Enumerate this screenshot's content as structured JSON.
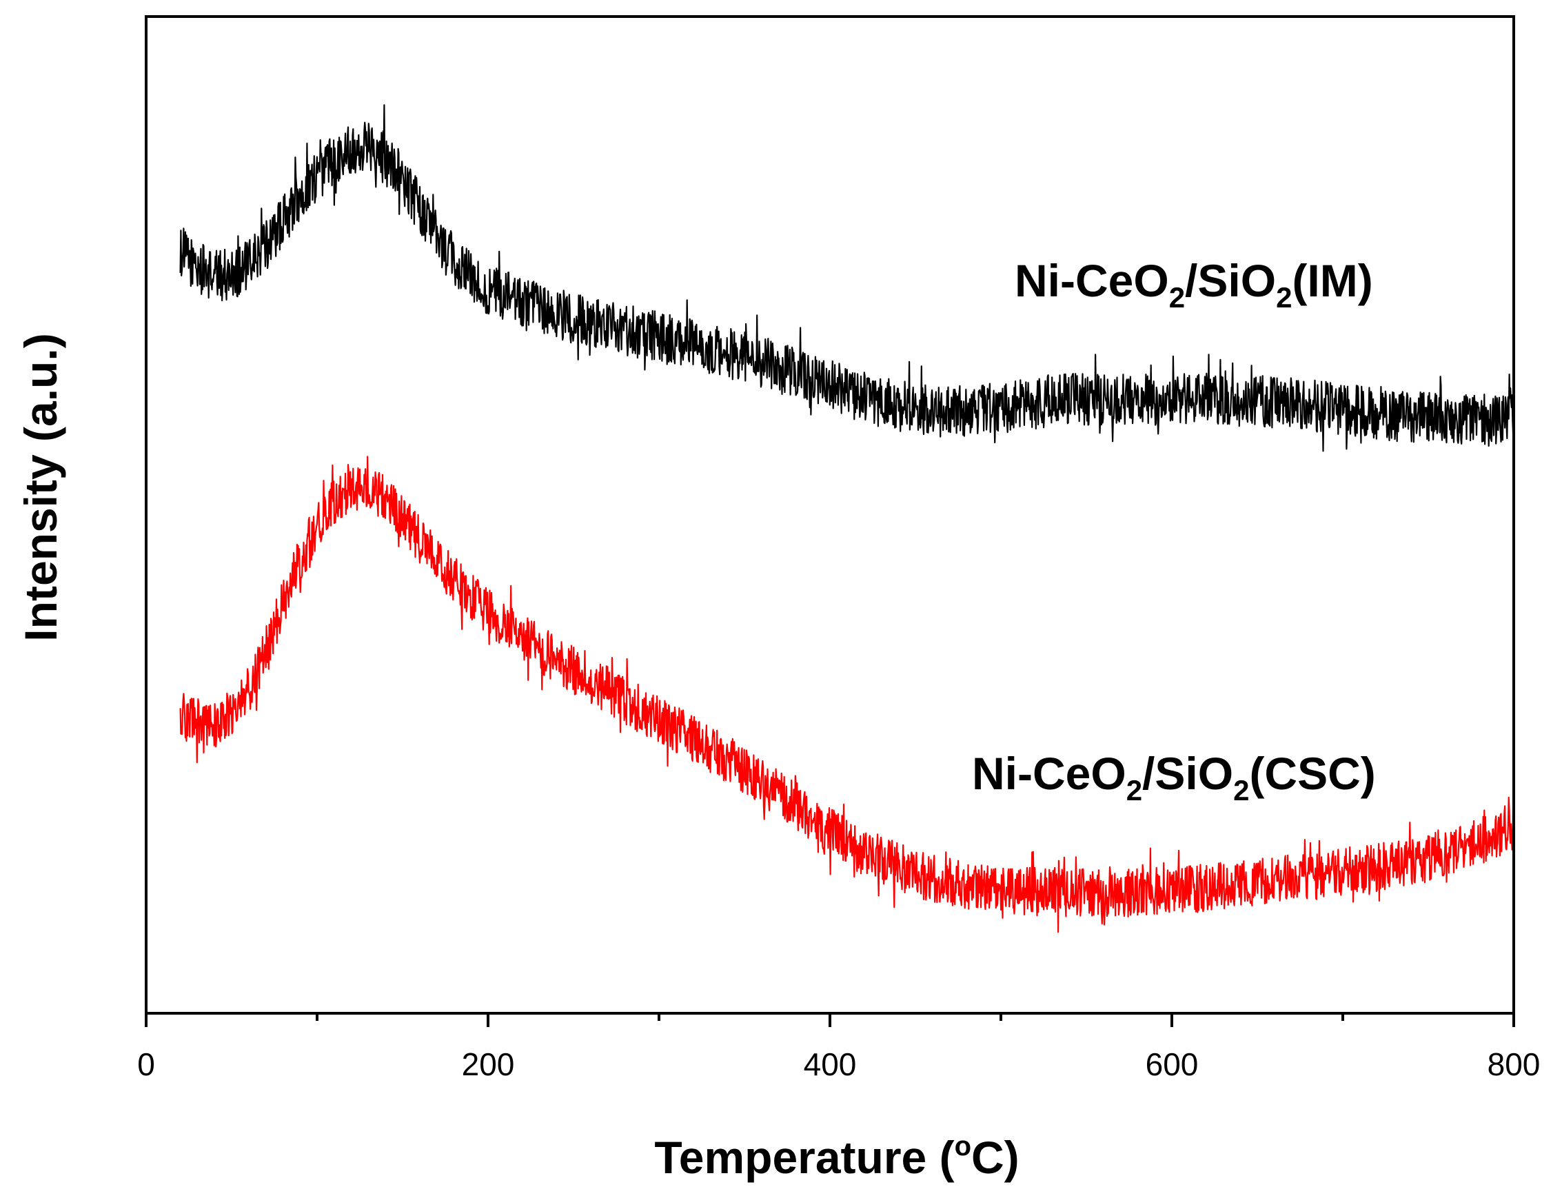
{
  "chart_data": {
    "type": "line",
    "title": "",
    "xlabel": "Temperature (°C)",
    "xlabel_prefix": "Temperature (",
    "xlabel_degree": "o",
    "xlabel_suffix": "C)",
    "ylabel": "Intensity (a.u.)",
    "xlim": [
      0,
      800
    ],
    "ylim": [
      0,
      100
    ],
    "x_ticks": [
      0,
      200,
      400,
      600,
      800
    ],
    "x_tick_labels": [
      "0",
      "200",
      "400",
      "600",
      "800"
    ],
    "x_minor_ticks": [
      100,
      300,
      500,
      700
    ],
    "y_ticks_shown": false,
    "grid": false,
    "legend": "inline labels beside curves",
    "series": [
      {
        "name": "Ni-CeO2/SiO2(IM)",
        "label_parts": [
          "Ni-CeO",
          "2",
          "/SiO",
          "2",
          "(IM)"
        ],
        "color": "#000000",
        "noise_amplitude": 2.6,
        "x": [
          20,
          30,
          40,
          50,
          60,
          70,
          80,
          90,
          100,
          110,
          120,
          130,
          135,
          140,
          150,
          160,
          170,
          180,
          190,
          200,
          220,
          240,
          260,
          280,
          300,
          320,
          340,
          360,
          380,
          400,
          420,
          440,
          460,
          480,
          500,
          520,
          540,
          560,
          580,
          600,
          620,
          640,
          660,
          680,
          700,
          720,
          740,
          760,
          780,
          800
        ],
        "y": [
          76.5,
          74.8,
          74.0,
          74.2,
          75.0,
          77.0,
          79.5,
          82.0,
          84.0,
          85.8,
          86.8,
          87.2,
          87.0,
          86.3,
          83.8,
          80.8,
          77.8,
          75.5,
          73.8,
          72.6,
          71.2,
          70.1,
          69.3,
          68.6,
          67.8,
          67.0,
          66.2,
          65.3,
          64.2,
          63.0,
          61.8,
          60.8,
          60.4,
          60.5,
          60.8,
          61.2,
          61.6,
          61.6,
          61.6,
          61.6,
          61.6,
          61.5,
          61.3,
          61.0,
          60.6,
          60.1,
          59.8,
          59.6,
          59.5,
          59.5
        ]
      },
      {
        "name": "Ni-CeO2/SiO2(CSC)",
        "label_parts": [
          "Ni-CeO",
          "2",
          "/SiO",
          "2",
          "(CSC)"
        ],
        "color": "#ff0000",
        "noise_amplitude": 2.4,
        "x": [
          20,
          30,
          40,
          50,
          60,
          70,
          80,
          90,
          100,
          110,
          120,
          130,
          140,
          150,
          160,
          170,
          180,
          190,
          200,
          220,
          240,
          260,
          280,
          300,
          320,
          340,
          360,
          380,
          400,
          420,
          440,
          460,
          480,
          500,
          520,
          540,
          560,
          580,
          600,
          620,
          640,
          660,
          680,
          700,
          720,
          740,
          760,
          780,
          800
        ],
        "y": [
          30.0,
          29.2,
          29.0,
          30.2,
          32.5,
          36.5,
          41.0,
          45.5,
          49.0,
          51.2,
          52.3,
          52.5,
          51.6,
          49.8,
          47.6,
          45.4,
          43.5,
          41.8,
          40.2,
          37.7,
          35.5,
          33.4,
          31.4,
          29.4,
          27.5,
          25.5,
          23.2,
          20.8,
          18.3,
          16.2,
          14.7,
          13.5,
          12.8,
          12.4,
          12.2,
          12.1,
          12.0,
          12.1,
          12.3,
          12.6,
          13.0,
          13.4,
          13.8,
          14.2,
          14.6,
          15.2,
          16.0,
          17.3,
          18.8
        ]
      }
    ]
  }
}
